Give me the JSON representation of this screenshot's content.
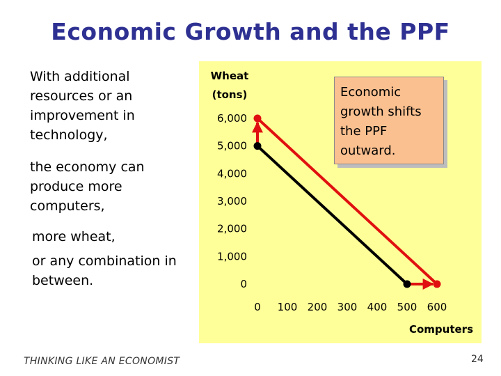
{
  "slide": {
    "title": "Economic Growth and the PPF",
    "footer": "THINKING LIKE AN ECONOMIST",
    "page_number": "24"
  },
  "text_blocks": {
    "t1": "With additional resources or an improvement in technology,",
    "t2": "the economy can produce more computers,",
    "t3": "more wheat,",
    "t4": "or any combination in between."
  },
  "callout": {
    "text": "Economic growth shifts the PPF outward."
  },
  "colors": {
    "title": "#2e3192",
    "plot_bg": "#ffff99",
    "original_ppf": "#000000",
    "new_ppf": "#e01010",
    "callout_bg": "#fac090"
  },
  "chart_data": {
    "type": "line",
    "title": "",
    "ylabel_lines": [
      "Wheat",
      "(tons)"
    ],
    "xlabel": "Computers",
    "xlim": [
      0,
      600
    ],
    "ylim": [
      0,
      6000
    ],
    "x_ticks": [
      0,
      100,
      200,
      300,
      400,
      500,
      600
    ],
    "y_ticks": [
      0,
      1000,
      2000,
      3000,
      4000,
      5000,
      6000
    ],
    "x_tick_labels": [
      "0",
      "100",
      "200",
      "300",
      "400",
      "500",
      "600"
    ],
    "y_tick_labels": [
      "0",
      "1,000",
      "2,000",
      "3,000",
      "4,000",
      "5,000",
      "6,000"
    ],
    "series": [
      {
        "name": "Original PPF",
        "color_key": "original_ppf",
        "points": [
          [
            0,
            5000
          ],
          [
            500,
            0
          ]
        ]
      },
      {
        "name": "New PPF",
        "color_key": "new_ppf",
        "points": [
          [
            0,
            6000
          ],
          [
            600,
            0
          ]
        ]
      }
    ],
    "annotations": [
      {
        "type": "arrow",
        "from": [
          0,
          5000
        ],
        "to": [
          0,
          6000
        ],
        "color_key": "new_ppf"
      },
      {
        "type": "arrow",
        "from": [
          500,
          0
        ],
        "to": [
          600,
          0
        ],
        "color_key": "new_ppf"
      }
    ]
  }
}
